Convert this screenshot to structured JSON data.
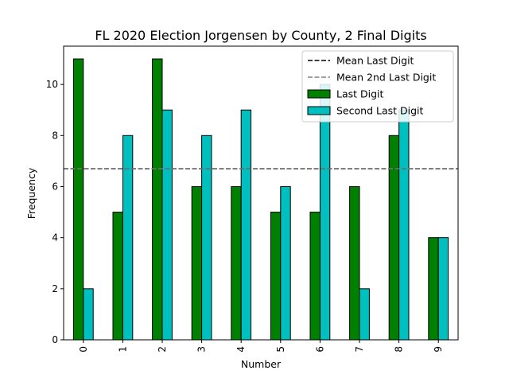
{
  "chart_data": {
    "type": "bar",
    "title": "FL 2020 Election Jorgensen by County, 2 Final Digits",
    "xlabel": "Number",
    "ylabel": "Frequency",
    "categories": [
      "0",
      "1",
      "2",
      "3",
      "4",
      "5",
      "6",
      "7",
      "8",
      "9"
    ],
    "ylim": [
      0,
      11.5
    ],
    "yticks": [
      0,
      2,
      4,
      6,
      8,
      10
    ],
    "series": [
      {
        "name": "Last Digit",
        "color": "#008000",
        "values": [
          11,
          5,
          11,
          6,
          6,
          5,
          5,
          6,
          8,
          4
        ]
      },
      {
        "name": "Second Last Digit",
        "color": "#00bfbf",
        "values": [
          2,
          8,
          9,
          8,
          9,
          6,
          10,
          2,
          9,
          4
        ]
      }
    ],
    "reference_lines": [
      {
        "name": "Mean Last Digit",
        "value": 6.7,
        "color": "#000000",
        "style": "dashed"
      },
      {
        "name": "Mean 2nd Last Digit",
        "value": 6.7,
        "color": "#808080",
        "style": "dashed"
      }
    ],
    "legend_position": "top-right",
    "legend_order": [
      "Mean Last Digit",
      "Mean 2nd Last Digit",
      "Last Digit",
      "Second Last Digit"
    ],
    "grid": false
  }
}
